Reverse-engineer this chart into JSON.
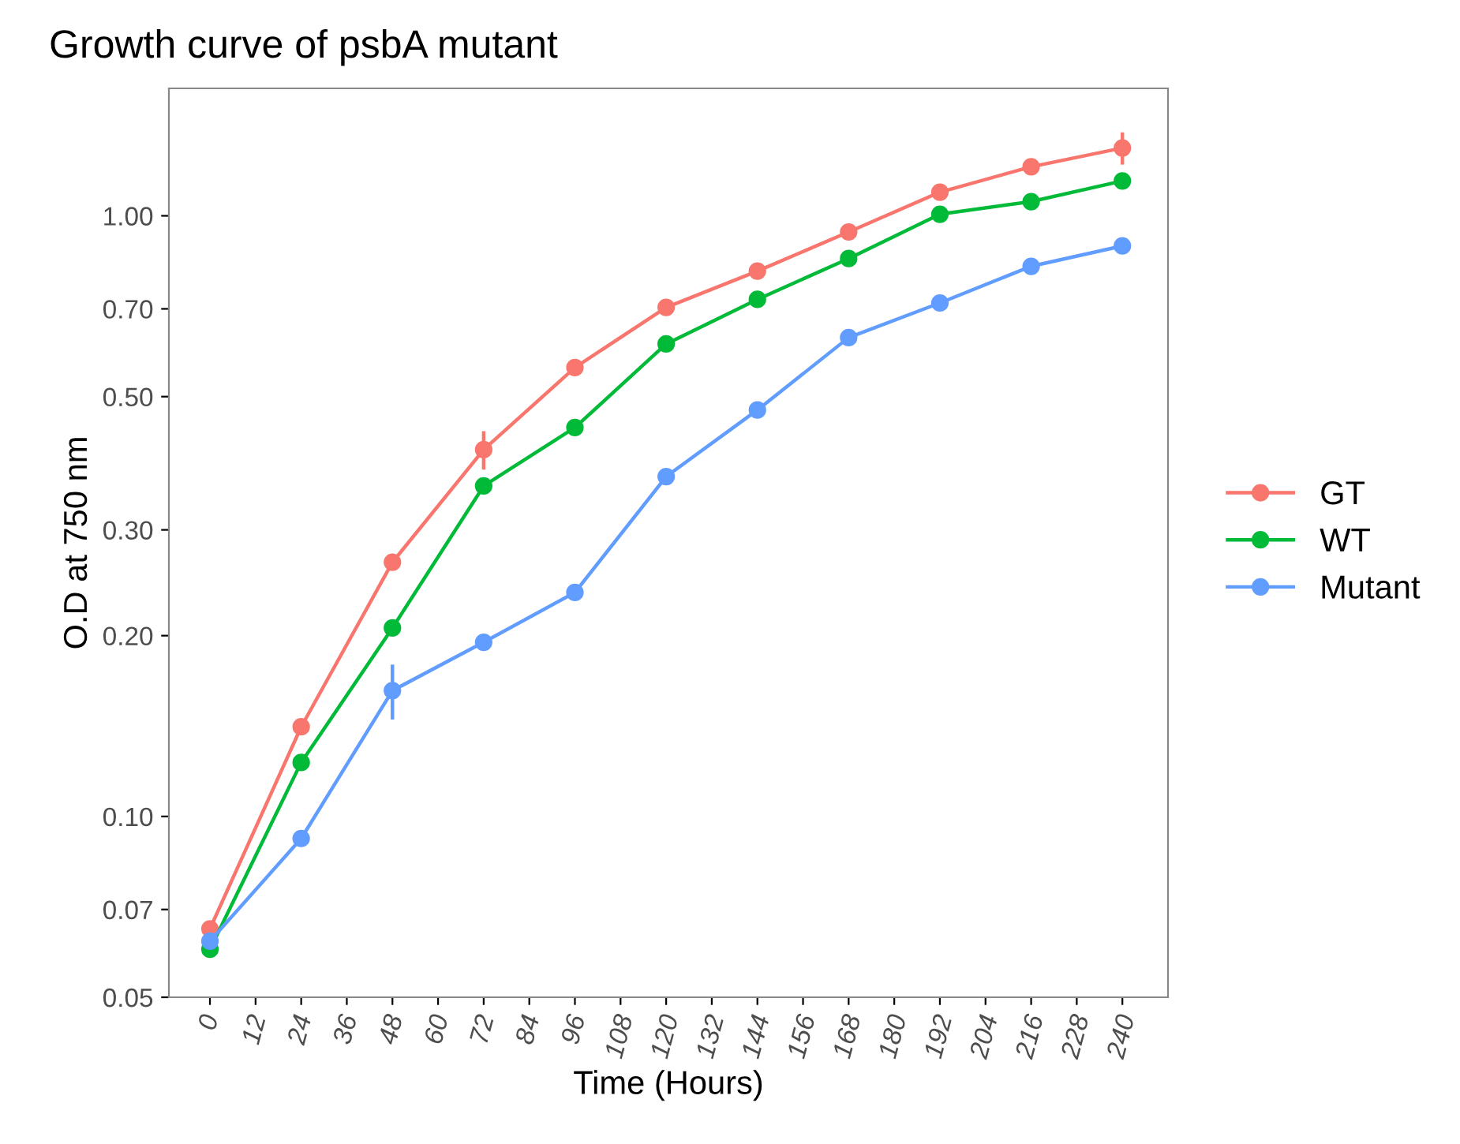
{
  "chart_data": {
    "type": "line",
    "title": "Growth curve of psbA mutant",
    "xlabel": "Time (Hours)",
    "ylabel": "O.D at 750 nm",
    "x": [
      0,
      24,
      48,
      72,
      96,
      120,
      144,
      168,
      192,
      216,
      240
    ],
    "series": [
      {
        "name": "GT",
        "color": "#f8766d",
        "values": [
          0.065,
          0.141,
          0.265,
          0.408,
          0.559,
          0.704,
          0.809,
          0.94,
          1.095,
          1.207,
          1.297
        ],
        "errors": [
          null,
          null,
          null,
          0.03,
          null,
          null,
          null,
          null,
          null,
          null,
          0.08
        ]
      },
      {
        "name": "WT",
        "color": "#00ba38",
        "values": [
          0.0601,
          0.123,
          0.206,
          0.355,
          0.444,
          0.612,
          0.726,
          0.849,
          1.006,
          1.056,
          1.143
        ]
      },
      {
        "name": "Mutant",
        "color": "#619cff",
        "values": [
          0.062,
          0.0919,
          0.162,
          0.195,
          0.236,
          0.368,
          0.475,
          0.627,
          0.716,
          0.824,
          0.891
        ],
        "errors": [
          null,
          null,
          0.017,
          null,
          null,
          null,
          null,
          null,
          null,
          null,
          null
        ]
      }
    ],
    "log": "y",
    "xlim": [
      -10.8,
      252
    ],
    "ylim": [
      0.05,
      1.63
    ],
    "xticks": [
      0,
      12,
      24,
      36,
      48,
      60,
      72,
      84,
      96,
      108,
      120,
      132,
      144,
      156,
      168,
      180,
      192,
      204,
      216,
      228,
      240
    ],
    "yticks": [
      {
        "value": 0.05,
        "label": "0.05"
      },
      {
        "value": 0.07,
        "label": "0.07"
      },
      {
        "value": 0.1,
        "label": "0.10"
      },
      {
        "value": 0.2,
        "label": "0.20"
      },
      {
        "value": 0.3,
        "label": "0.30"
      },
      {
        "value": 0.5,
        "label": "0.50"
      },
      {
        "value": 0.7,
        "label": "0.70"
      },
      {
        "value": 1,
        "label": "1.00"
      }
    ],
    "grid": false,
    "legend": "right",
    "marker": "circle",
    "line_style": "solid"
  }
}
